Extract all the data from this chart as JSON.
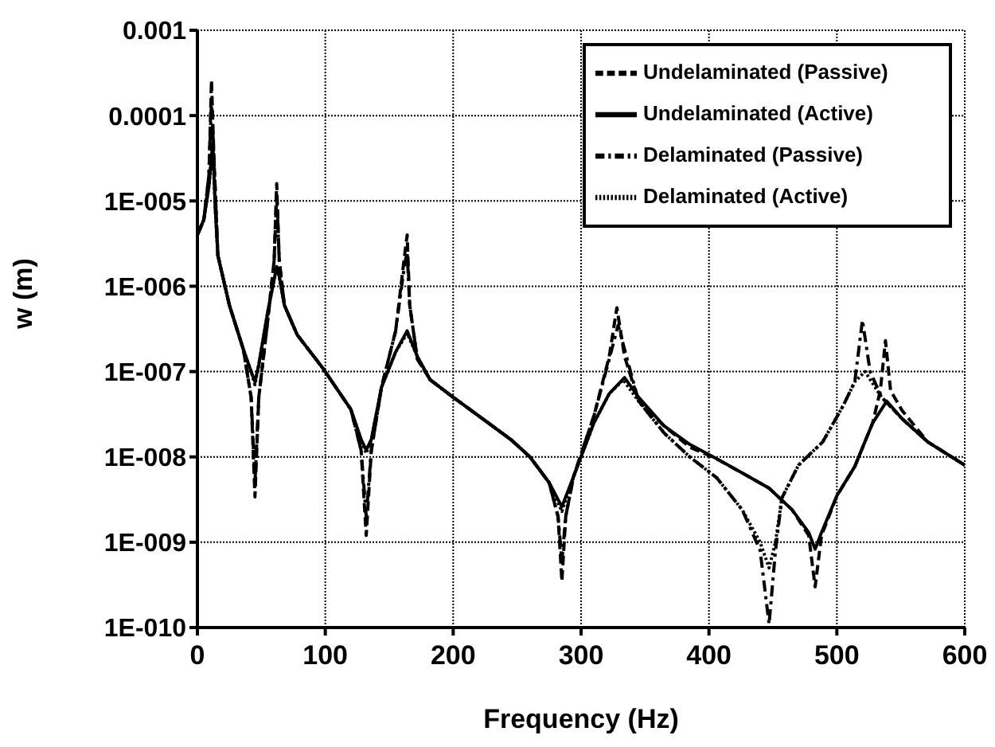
{
  "chart_data": {
    "type": "line",
    "xlabel": "Frequency (Hz)",
    "ylabel": "w (m)",
    "log": "y",
    "grid": true,
    "legend": "top right",
    "marker": "none",
    "xlim": [
      0,
      600
    ],
    "xticks": [
      0,
      100,
      200,
      300,
      400,
      500,
      600
    ],
    "ylim": [
      1e-10,
      0.001
    ],
    "yticks": [
      {
        "value": 1e-10,
        "label": "1E-010"
      },
      {
        "value": 1e-09,
        "label": "1E-009"
      },
      {
        "value": 1e-08,
        "label": "1E-008"
      },
      {
        "value": 1e-07,
        "label": "1E-007"
      },
      {
        "value": 1e-06,
        "label": "1E-006"
      },
      {
        "value": 1e-05,
        "label": "1E-005"
      },
      0.0001,
      0.001
    ],
    "series": [
      {
        "name": "Undelaminated (Passive)",
        "color": "#000000",
        "line_style": "dashed",
        "x": [
          0,
          5,
          9,
          11,
          13,
          16,
          25,
          36,
          42,
          45,
          48,
          55,
          60,
          62,
          64,
          68,
          78,
          98,
          120,
          128,
          132,
          136,
          144,
          155,
          162,
          164,
          166,
          172,
          182,
          200,
          223,
          245,
          260,
          275,
          282,
          285,
          288,
          294,
          310,
          322,
          328,
          334,
          345,
          365,
          385,
          406,
          430,
          447,
          465,
          478,
          483,
          488,
          500,
          514,
          528,
          534,
          538,
          542,
          551,
          571,
          600
        ],
        "values": [
          4e-06,
          6e-06,
          2e-05,
          0.00026,
          3e-05,
          2.3e-06,
          6e-07,
          1.8e-07,
          5e-08,
          3.4e-09,
          5e-08,
          4e-07,
          2e-06,
          1.6e-05,
          2e-06,
          6e-07,
          2.7e-07,
          1.1e-07,
          3.6e-08,
          1.2e-08,
          1.2e-09,
          1.2e-08,
          6.6e-08,
          3e-07,
          2.3e-06,
          4e-06,
          6e-07,
          1.4e-07,
          8e-08,
          5e-08,
          2.8e-08,
          1.6e-08,
          1e-08,
          5e-09,
          2e-09,
          3.5e-10,
          2e-09,
          5.8e-09,
          3e-08,
          1.5e-07,
          5.6e-07,
          1.5e-07,
          4.5e-08,
          2.3e-08,
          1.3e-08,
          9.5e-09,
          6e-09,
          4.3e-09,
          2.4e-09,
          1.2e-09,
          3e-10,
          1.2e-09,
          3.5e-09,
          7.7e-09,
          2.5e-08,
          6e-08,
          2.3e-07,
          6e-08,
          3.5e-08,
          1.5e-08,
          8e-09
        ]
      },
      {
        "name": "Undelaminated (Active)",
        "color": "#000000",
        "line_style": "solid",
        "x": [
          0,
          5,
          9,
          12,
          14,
          16,
          25,
          36,
          42,
          45,
          48,
          55,
          60,
          62,
          64,
          68,
          78,
          98,
          120,
          128,
          132,
          136,
          144,
          155,
          164,
          172,
          182,
          200,
          223,
          245,
          260,
          275,
          285,
          294,
          310,
          322,
          334,
          345,
          365,
          385,
          406,
          430,
          447,
          465,
          478,
          483,
          488,
          500,
          514,
          528,
          539,
          551,
          571,
          600
        ],
        "values": [
          4e-06,
          6e-06,
          1.5e-05,
          4.8e-05,
          8e-06,
          2.3e-06,
          6e-07,
          1.8e-07,
          1e-07,
          7.6e-08,
          1.2e-07,
          5e-07,
          1.2e-06,
          1.7e-06,
          1.3e-06,
          6e-07,
          2.7e-07,
          1.1e-07,
          3.6e-08,
          1.6e-08,
          1.2e-08,
          1.6e-08,
          6.6e-08,
          1.7e-07,
          3e-07,
          1.5e-07,
          8e-08,
          5e-08,
          2.8e-08,
          1.6e-08,
          1e-08,
          5e-09,
          2.6e-09,
          5.8e-09,
          2.5e-08,
          5.5e-08,
          8.5e-08,
          5e-08,
          2.3e-08,
          1.4e-08,
          9.5e-09,
          6e-09,
          4.3e-09,
          2.4e-09,
          1.3e-09,
          8.3e-10,
          1.3e-09,
          3.5e-09,
          7.7e-09,
          2.5e-08,
          4.5e-08,
          2.8e-08,
          1.5e-08,
          8e-09
        ]
      },
      {
        "name": "Delaminated (Passive)",
        "color": "#000000",
        "line_style": "dashdot",
        "x": [
          0,
          5,
          9,
          11,
          13,
          16,
          25,
          36,
          42,
          45,
          48,
          55,
          60,
          62,
          64,
          68,
          78,
          98,
          120,
          128,
          132,
          136,
          144,
          155,
          162,
          164,
          166,
          172,
          182,
          200,
          223,
          245,
          260,
          275,
          282,
          285,
          288,
          294,
          310,
          322,
          329,
          336,
          345,
          365,
          385,
          406,
          426,
          440,
          447,
          452,
          457,
          470,
          489,
          505,
          514,
          520,
          526,
          535,
          551,
          571,
          600
        ],
        "values": [
          4e-06,
          6e-06,
          2e-05,
          0.00015,
          3e-05,
          2.3e-06,
          6e-07,
          1.8e-07,
          5e-08,
          5e-09,
          5e-08,
          4e-07,
          2e-06,
          1.2e-05,
          2e-06,
          6e-07,
          2.7e-07,
          1.1e-07,
          3.6e-08,
          1.2e-08,
          2e-09,
          1.2e-08,
          6.6e-08,
          3e-07,
          1.8e-06,
          2.5e-06,
          6e-07,
          1.4e-07,
          8e-08,
          5e-08,
          2.8e-08,
          1.6e-08,
          1e-08,
          5e-09,
          2e-09,
          6e-10,
          2e-09,
          5.8e-09,
          3e-08,
          1.4e-07,
          3.5e-07,
          1.4e-07,
          4.5e-08,
          1.9e-08,
          1e-08,
          5.7e-09,
          2.4e-09,
          8e-10,
          1.1e-10,
          8e-10,
          3.3e-09,
          8e-09,
          1.5e-08,
          4e-08,
          7.6e-08,
          4e-07,
          1e-07,
          5e-08,
          2.8e-08,
          1.5e-08,
          8e-09
        ]
      },
      {
        "name": "Delaminated (Active)",
        "color": "#000000",
        "line_style": "dotted",
        "x": [
          0,
          5,
          9,
          12,
          14,
          16,
          25,
          36,
          42,
          45,
          48,
          55,
          60,
          62,
          64,
          68,
          78,
          98,
          120,
          128,
          132,
          136,
          144,
          155,
          164,
          172,
          182,
          200,
          223,
          245,
          260,
          275,
          285,
          294,
          310,
          322,
          333,
          345,
          365,
          385,
          406,
          426,
          440,
          447,
          452,
          457,
          470,
          489,
          505,
          514,
          522,
          535,
          551,
          571,
          600
        ],
        "values": [
          4e-06,
          6e-06,
          1.5e-05,
          4.5e-05,
          8e-06,
          2.3e-06,
          6e-07,
          1.8e-07,
          1e-07,
          7e-08,
          1.2e-07,
          5e-07,
          1.2e-06,
          1.6e-06,
          1.3e-06,
          6e-07,
          2.7e-07,
          1.1e-07,
          3.6e-08,
          1.6e-08,
          1.1e-08,
          1.6e-08,
          6.6e-08,
          1.7e-07,
          2.8e-07,
          1.5e-07,
          8e-08,
          5e-08,
          2.8e-08,
          1.6e-08,
          1e-08,
          5e-09,
          2.3e-09,
          5.8e-09,
          2.5e-08,
          5.5e-08,
          8e-08,
          4.5e-08,
          1.9e-08,
          1e-08,
          5.7e-09,
          2.4e-09,
          1e-09,
          5e-10,
          1e-09,
          3.3e-09,
          8e-09,
          1.5e-08,
          4e-08,
          7.6e-08,
          1e-07,
          5e-08,
          2.8e-08,
          1.5e-08,
          8e-09
        ]
      }
    ]
  }
}
